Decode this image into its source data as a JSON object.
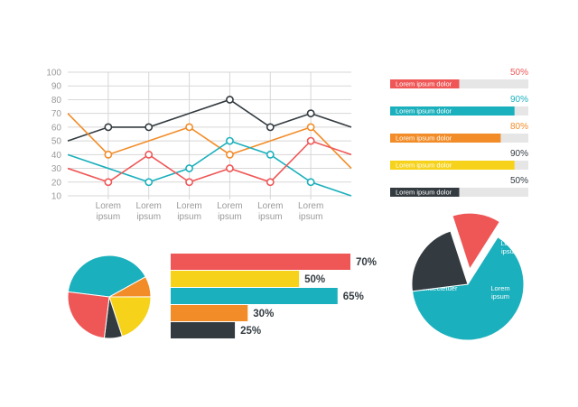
{
  "chart_data": [
    {
      "type": "line",
      "yticks": [
        10,
        20,
        30,
        40,
        50,
        60,
        70,
        80,
        90,
        100
      ],
      "ylim": [
        10,
        100
      ],
      "x": [
        0,
        1,
        2,
        3,
        4,
        5,
        6,
        7
      ],
      "xtick_labels": [
        {
          "l1": "Lorem",
          "l2": "ipsum"
        },
        {
          "l1": "Lorem",
          "l2": "ipsum"
        },
        {
          "l1": "Lorem",
          "l2": "ipsum"
        },
        {
          "l1": "Lorem",
          "l2": "ipsum"
        },
        {
          "l1": "Lorem",
          "l2": "ipsum"
        },
        {
          "l1": "Lorem",
          "l2": "ipsum"
        }
      ],
      "grid": true,
      "series": [
        {
          "color": "#333b40",
          "values": [
            50,
            60,
            60,
            70,
            80,
            60,
            70,
            60
          ],
          "markers": [
            1,
            2,
            4,
            5,
            6
          ]
        },
        {
          "color": "#f28c28",
          "values": [
            70,
            40,
            50,
            60,
            40,
            50,
            60,
            30
          ],
          "markers": [
            1,
            3,
            4,
            6
          ]
        },
        {
          "color": "#1bb0bd",
          "values": [
            40,
            30,
            20,
            30,
            50,
            40,
            20,
            10
          ],
          "markers": [
            2,
            3,
            4,
            5,
            6
          ]
        },
        {
          "color": "#ef5656",
          "values": [
            30,
            20,
            40,
            20,
            30,
            20,
            50,
            40
          ],
          "markers": [
            1,
            2,
            3,
            4,
            5,
            6
          ]
        }
      ]
    },
    {
      "type": "bar",
      "orientation": "horizontal",
      "series_label": "Lorem ipsum dolor",
      "bars": [
        {
          "label": "Lorem ipsum dolor",
          "value": 50,
          "value_label": "50%",
          "color": "#ef5656",
          "label_color": "#ef5656"
        },
        {
          "label": "Lorem ipsum dolor",
          "value": 90,
          "value_label": "90%",
          "color": "#1bb0bd",
          "label_color": "#1bb0bd"
        },
        {
          "label": "Lorem ipsum dolor",
          "value": 80,
          "value_label": "80%",
          "color": "#f28c28",
          "label_color": "#f28c28"
        },
        {
          "label": "Lorem ipsum dolor",
          "value": 90,
          "value_label": "90%",
          "color": "#f6d21a",
          "label_color": "#333b40"
        },
        {
          "label": "Lorem ipsum dolor",
          "value": 50,
          "value_label": "50%",
          "color": "#333b40",
          "label_color": "#333b40"
        }
      ],
      "max": 100
    },
    {
      "type": "pie",
      "slices": [
        {
          "value": 40,
          "color": "#1bb0bd"
        },
        {
          "value": 8,
          "color": "#f28c28"
        },
        {
          "value": 20,
          "color": "#f6d21a"
        },
        {
          "value": 7,
          "color": "#333b40"
        },
        {
          "value": 25,
          "color": "#ef5656"
        }
      ]
    },
    {
      "type": "bar",
      "orientation": "horizontal",
      "bars": [
        {
          "value": 70,
          "value_label": "70%",
          "color": "#ef5656"
        },
        {
          "value": 50,
          "value_label": "50%",
          "color": "#f6d21a"
        },
        {
          "value": 65,
          "value_label": "65%",
          "color": "#1bb0bd"
        },
        {
          "value": 30,
          "value_label": "30%",
          "color": "#f28c28"
        },
        {
          "value": 25,
          "value_label": "25%",
          "color": "#333b40"
        }
      ],
      "max": 70
    },
    {
      "type": "pie",
      "slices": [
        {
          "value": 64,
          "color": "#1bb0bd",
          "text": [
            "Lorem ipsum",
            "dolor sit amet,",
            "consectetuer"
          ]
        },
        {
          "value": 22,
          "color": "#333b40",
          "text": [
            "Lorem",
            "ipsum"
          ]
        },
        {
          "value": 14,
          "color": "#ef5656",
          "text": [
            "Lorem",
            "ipsum"
          ],
          "exploded": true
        }
      ]
    }
  ]
}
